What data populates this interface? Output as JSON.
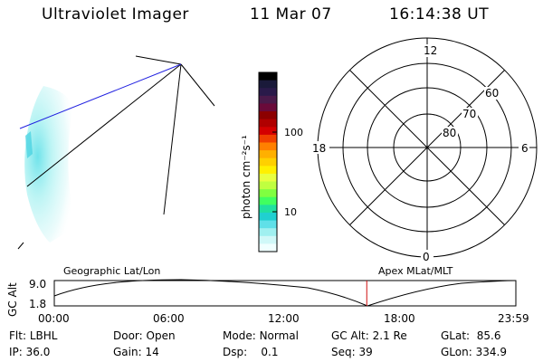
{
  "header": {
    "title": "Ultraviolet Imager",
    "date": "11 Mar 07",
    "time": "16:14:38 UT"
  },
  "colorbar": {
    "unit_label": "photon cm⁻²s⁻¹",
    "tick_labels": [
      "100",
      "10"
    ],
    "tick_values": [
      100,
      10
    ],
    "scale": "log",
    "colors": [
      "#000000",
      "#1a1a3a",
      "#2a1a4a",
      "#4a1a4a",
      "#6a0a3a",
      "#8c0000",
      "#b00000",
      "#d40000",
      "#f04000",
      "#ff8000",
      "#ffb000",
      "#ffd000",
      "#fff000",
      "#e8ff40",
      "#c0ff40",
      "#80ff40",
      "#40ff60",
      "#20e0a0",
      "#20d0d0",
      "#60e0e8",
      "#a0f0f0",
      "#d0f8f8",
      "#f0ffff"
    ]
  },
  "polar": {
    "mlt_labels": {
      "top": "12",
      "bottom": "0",
      "left": "18",
      "right": "6"
    },
    "lat_labels": [
      "60",
      "70",
      "80"
    ]
  },
  "timeline": {
    "y_axis_label": "GC Alt",
    "y_ticks": [
      "9.0",
      "1.8"
    ],
    "left_label": "Geographic Lat/Lon",
    "right_label": "Apex MLat/MLT",
    "x_ticks": [
      "00:00",
      "06:00",
      "12:00",
      "18:00",
      "23:59"
    ],
    "current_time_fraction": 0.677
  },
  "info": {
    "row1": [
      {
        "label": "Flt:",
        "value": "LBHL"
      },
      {
        "label": "Door:",
        "value": "Open"
      },
      {
        "label": "Mode:",
        "value": "Normal"
      },
      {
        "label": "GC Alt:",
        "value": "2.1 Re"
      },
      {
        "label": "GLat:",
        "value": "85.6"
      }
    ],
    "row2": [
      {
        "label": "IP:",
        "value": "36.0"
      },
      {
        "label": "Gain:",
        "value": "14"
      },
      {
        "label": "Dsp:",
        "value": "0.1"
      },
      {
        "label": "Seq:",
        "value": "39"
      },
      {
        "label": "GLon:",
        "value": "334.9"
      }
    ]
  }
}
